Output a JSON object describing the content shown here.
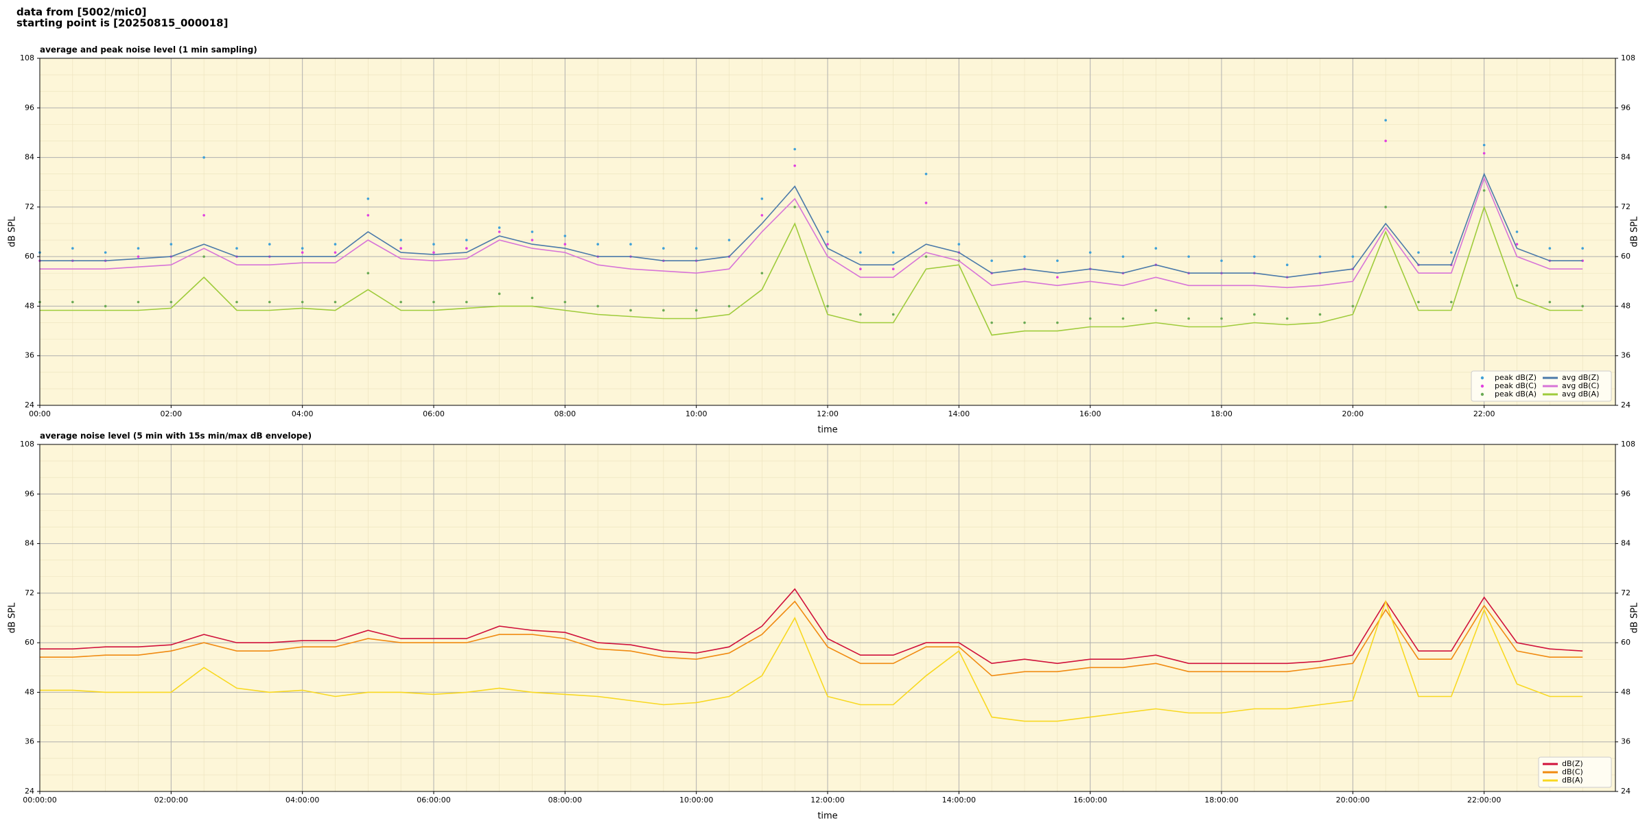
{
  "header": [
    "data from [5002/mic0]",
    "starting point is [20250815_000018]"
  ],
  "chart_data": [
    {
      "type": "line",
      "title": "average and peak noise level (1 min sampling)",
      "xlabel": "time",
      "ylabel": "dB SPL",
      "x": [
        0,
        0.5,
        1,
        1.5,
        2,
        2.5,
        3,
        3.5,
        4,
        4.5,
        5,
        5.5,
        6,
        6.5,
        7,
        7.5,
        8,
        8.5,
        9,
        9.5,
        10,
        10.5,
        11,
        11.5,
        12,
        12.5,
        13,
        13.5,
        14,
        14.5,
        15,
        15.5,
        16,
        16.5,
        17,
        17.5,
        18,
        18.5,
        19,
        19.5,
        20,
        20.5,
        21,
        21.5,
        22,
        22.5,
        23,
        23.5
      ],
      "xlim": [
        0,
        24
      ],
      "ylim": [
        24,
        108
      ],
      "yticks": [
        24,
        36,
        48,
        60,
        72,
        84,
        96,
        108
      ],
      "xticks": [
        {
          "value": 0,
          "label": "00:00"
        },
        {
          "value": 2,
          "label": "02:00"
        },
        {
          "value": 4,
          "label": "04:00"
        },
        {
          "value": 6,
          "label": "06:00"
        },
        {
          "value": 8,
          "label": "08:00"
        },
        {
          "value": 10,
          "label": "10:00"
        },
        {
          "value": 12,
          "label": "12:00"
        },
        {
          "value": 14,
          "label": "14:00"
        },
        {
          "value": 16,
          "label": "16:00"
        },
        {
          "value": 18,
          "label": "18:00"
        },
        {
          "value": 20,
          "label": "20:00"
        },
        {
          "value": 22,
          "label": "22:00"
        }
      ],
      "grid": true,
      "legend": "lower right",
      "legend_columns": 2,
      "series": [
        {
          "name": "peak dB(Z)",
          "style": "dots",
          "color": "#3fa0d8",
          "values": [
            61,
            62,
            61,
            62,
            63,
            84,
            62,
            63,
            62,
            63,
            74,
            64,
            63,
            64,
            67,
            66,
            65,
            63,
            63,
            62,
            62,
            64,
            74,
            86,
            66,
            61,
            61,
            80,
            63,
            59,
            60,
            59,
            61,
            60,
            62,
            60,
            59,
            60,
            58,
            60,
            60,
            93,
            61,
            61,
            87,
            66,
            62,
            62
          ]
        },
        {
          "name": "peak dB(C)",
          "style": "dots",
          "color": "#e040e0",
          "values": [
            59,
            59,
            59,
            60,
            60,
            70,
            60,
            60,
            61,
            61,
            70,
            62,
            61,
            62,
            66,
            64,
            63,
            60,
            60,
            59,
            59,
            60,
            70,
            82,
            63,
            57,
            57,
            73,
            61,
            56,
            57,
            55,
            57,
            56,
            58,
            56,
            56,
            56,
            55,
            56,
            57,
            88,
            58,
            58,
            85,
            63,
            59,
            59
          ]
        },
        {
          "name": "peak dB(A)",
          "style": "dots",
          "color": "#6aaa55",
          "values": [
            49,
            49,
            48,
            49,
            49,
            60,
            49,
            49,
            49,
            49,
            56,
            49,
            49,
            49,
            51,
            50,
            49,
            48,
            47,
            47,
            47,
            48,
            56,
            72,
            48,
            46,
            46,
            60,
            59,
            44,
            44,
            44,
            45,
            45,
            47,
            45,
            45,
            46,
            45,
            46,
            48,
            72,
            49,
            49,
            76,
            53,
            49,
            48
          ]
        },
        {
          "name": "avg dB(Z)",
          "style": "line",
          "color": "#4a79a9",
          "values": [
            59,
            59,
            59,
            59.5,
            60,
            63,
            60,
            60,
            60,
            60,
            66,
            61,
            60.5,
            61,
            65,
            63,
            62,
            60,
            60,
            59,
            59,
            60,
            68,
            77,
            62,
            58,
            58,
            63,
            61,
            56,
            57,
            56,
            57,
            56,
            58,
            56,
            56,
            56,
            55,
            56,
            57,
            68,
            58,
            58,
            80,
            62,
            59,
            59
          ]
        },
        {
          "name": "avg dB(C)",
          "style": "line",
          "color": "#d773d7",
          "values": [
            57,
            57,
            57,
            57.5,
            58,
            62,
            58,
            58,
            58.5,
            58.5,
            64,
            59.5,
            59,
            59.5,
            64,
            62,
            61,
            58,
            57,
            56.5,
            56,
            57,
            66,
            74,
            60,
            55,
            55,
            61,
            59,
            53,
            54,
            53,
            54,
            53,
            55,
            53,
            53,
            53,
            52.5,
            53,
            54,
            67,
            56,
            56,
            79,
            60,
            57,
            57
          ]
        },
        {
          "name": "avg dB(A)",
          "style": "line",
          "color": "#9ecb3a",
          "values": [
            47,
            47,
            47,
            47,
            47.5,
            55,
            47,
            47,
            47.5,
            47,
            52,
            47,
            47,
            47.5,
            48,
            48,
            47,
            46,
            45.5,
            45,
            45,
            46,
            52,
            68,
            46,
            44,
            44,
            57,
            58,
            41,
            42,
            42,
            43,
            43,
            44,
            43,
            43,
            44,
            43.5,
            44,
            46,
            66,
            47,
            47,
            72,
            50,
            47,
            47
          ]
        }
      ]
    },
    {
      "type": "line",
      "title": "average noise level (5 min with 15s min/max dB envelope)",
      "xlabel": "time",
      "ylabel": "dB SPL",
      "x": [
        0,
        0.5,
        1,
        1.5,
        2,
        2.5,
        3,
        3.5,
        4,
        4.5,
        5,
        5.5,
        6,
        6.5,
        7,
        7.5,
        8,
        8.5,
        9,
        9.5,
        10,
        10.5,
        11,
        11.5,
        12,
        12.5,
        13,
        13.5,
        14,
        14.5,
        15,
        15.5,
        16,
        16.5,
        17,
        17.5,
        18,
        18.5,
        19,
        19.5,
        20,
        20.5,
        21,
        21.5,
        22,
        22.5,
        23,
        23.5
      ],
      "xlim": [
        0,
        24
      ],
      "ylim": [
        24,
        108
      ],
      "yticks": [
        24,
        36,
        48,
        60,
        72,
        84,
        96,
        108
      ],
      "xticks": [
        {
          "value": 0,
          "label": "00:00:00"
        },
        {
          "value": 2,
          "label": "02:00:00"
        },
        {
          "value": 4,
          "label": "04:00:00"
        },
        {
          "value": 6,
          "label": "06:00:00"
        },
        {
          "value": 8,
          "label": "08:00:00"
        },
        {
          "value": 10,
          "label": "10:00:00"
        },
        {
          "value": 12,
          "label": "12:00:00"
        },
        {
          "value": 14,
          "label": "14:00:00"
        },
        {
          "value": 16,
          "label": "16:00:00"
        },
        {
          "value": 18,
          "label": "18:00:00"
        },
        {
          "value": 20,
          "label": "20:00:00"
        },
        {
          "value": 22,
          "label": "22:00:00"
        }
      ],
      "grid": true,
      "legend": "lower right",
      "legend_columns": 1,
      "series": [
        {
          "name": "dB(Z)",
          "style": "line",
          "color": "#d0103a",
          "values": [
            58.5,
            58.5,
            59,
            59,
            59.5,
            62,
            60,
            60,
            60.5,
            60.5,
            63,
            61,
            61,
            61,
            64,
            63,
            62.5,
            60,
            59.5,
            58,
            57.5,
            59,
            64,
            73,
            61,
            57,
            57,
            60,
            60,
            55,
            56,
            55,
            56,
            56,
            57,
            55,
            55,
            55,
            55,
            55.5,
            57,
            70,
            58,
            58,
            71,
            60,
            58.5,
            58
          ]
        },
        {
          "name": "dB(C)",
          "style": "line",
          "color": "#f08a10",
          "values": [
            56.5,
            56.5,
            57,
            57,
            58,
            60,
            58,
            58,
            59,
            59,
            61,
            60,
            60,
            60,
            62,
            62,
            61,
            58.5,
            58,
            56.5,
            56,
            57.5,
            62,
            70,
            59,
            55,
            55,
            59,
            59,
            52,
            53,
            53,
            54,
            54,
            55,
            53,
            53,
            53,
            53,
            54,
            55,
            68,
            56,
            56,
            69,
            58,
            56.5,
            56.5
          ]
        },
        {
          "name": "dB(A)",
          "style": "line",
          "color": "#f8d820",
          "values": [
            48.5,
            48.5,
            48,
            48,
            48,
            54,
            49,
            48,
            48.5,
            47,
            48,
            48,
            47.5,
            48,
            49,
            48,
            47.5,
            47,
            46,
            45,
            45.5,
            47,
            52,
            66,
            47,
            45,
            45,
            52,
            58,
            42,
            41,
            41,
            42,
            43,
            44,
            43,
            43,
            44,
            44,
            45,
            46,
            70,
            47,
            47,
            68,
            50,
            47,
            47
          ]
        }
      ]
    }
  ]
}
